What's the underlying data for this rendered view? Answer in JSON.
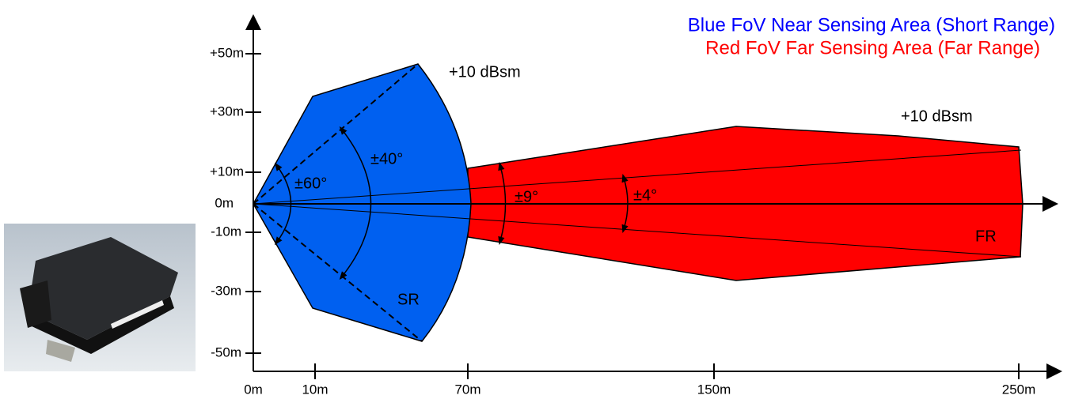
{
  "legend": {
    "blue": "Blue FoV Near Sensing Area (Short Range)",
    "red": "Red  FoV Far Sensing Area (Far Range)"
  },
  "y_axis_labels": [
    "+50m",
    "+30m",
    "+10m",
    "0m",
    "-10m",
    "-30m",
    "-50m"
  ],
  "x_axis_labels": [
    "0m",
    "10m",
    "70m",
    "150m",
    "250m"
  ],
  "annotations": {
    "near_angle_wide": "±60°",
    "near_angle": "±40°",
    "far_angle_wide": "±9°",
    "far_angle": "±4°",
    "near_rcs": "+10 dBsm",
    "far_rcs": "+10 dBsm",
    "near_label": "SR",
    "far_label": "FR"
  }
}
